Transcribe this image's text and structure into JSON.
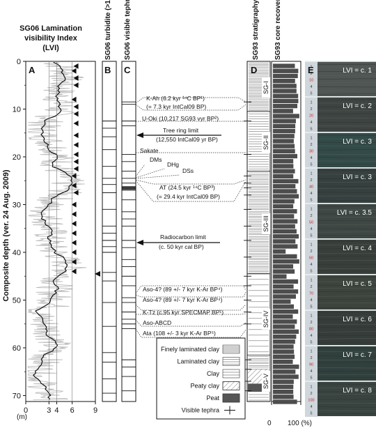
{
  "panel_a": {
    "title_line1": "SG06 Lamination",
    "title_line2": "visibility Index",
    "title_line3": "(LVI)",
    "letter": "A",
    "x_ticks": [
      "0",
      "3",
      "4",
      "6",
      "9"
    ],
    "y_ticks": [
      "0",
      "10",
      "20",
      "30",
      "40",
      "50",
      "60",
      "70"
    ],
    "y_unit": "(m)",
    "y_axis_label": "Composite depth (ver. 24 Aug. 2009)"
  },
  "panel_b": {
    "letter": "B",
    "header": "SG06 turbidite (>1cm)"
  },
  "panel_c": {
    "letter": "C",
    "header": "SG06 visible tephra"
  },
  "panel_d": {
    "letter": "D",
    "header_strat": "SG93 stratigraphy",
    "header_recovery": "SG93 core recovery",
    "zones": [
      "SG-I",
      "SG-II",
      "SG-III",
      "SG-IV",
      "SG-V"
    ],
    "recovery_axis": [
      "0",
      "100 (%)"
    ]
  },
  "panel_e": {
    "letter": "E",
    "photo_labels": [
      "LVI = c. 1",
      "LVI = c. 2",
      "LVI = c. 3",
      "LVI = c. 3",
      "LVI = c. 3.5",
      "LVI = c. 4",
      "LVI = c. 5",
      "LVI = c. 6",
      "LVI = c. 7",
      "LVI = c. 8"
    ]
  },
  "annotations": {
    "kah_1": "K-Ah (6.2 kyr ¹⁴C BP¹)",
    "kah_2": "(= 7.3 kyr IntCal09 BP)",
    "uokii": "U-Oki (10,217 SG93 vyr BP²)",
    "tree_1": "Tree ring limit",
    "tree_2": "(12,550 IntCal09 yr BP)",
    "sakate": "Sakate",
    "dms": "DMs",
    "dhg": "DHg",
    "dss": "DSs",
    "at_1": "AT (24.5 kyr ¹⁴C BP³)",
    "at_2": "(= 29.4 kyr IntCal09 BP)",
    "radio_1": "Radiocarbon limit",
    "radio_2": "(c. 50 kyr cal BP)",
    "aso4a": "Aso-4? (89 +/- 7 kyr K-Ar BP⁴)",
    "aso4b": "Aso-4? (89 +/- 7 kyr K-Ar BP⁴)",
    "ktz": "K-Tz (c.95 kyr SPECMAP BP¹)",
    "asoabcd": "Aso-ABCD",
    "ata": "Ata (108 +/- 3 kyr K-Ar BP⁵)"
  },
  "legend": {
    "items": [
      "Finely laminated clay",
      "Laminated clay",
      "Clay",
      "Peaty clay",
      "Peat",
      "Visible tephra"
    ]
  }
}
